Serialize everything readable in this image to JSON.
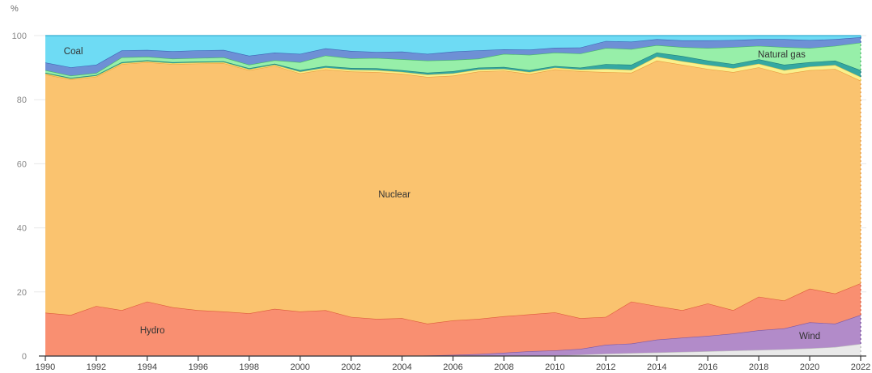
{
  "chart_data": {
    "type": "area",
    "stacked": true,
    "title": "",
    "unit": "%",
    "xlim": [
      1990,
      2022
    ],
    "ylim": [
      0,
      100
    ],
    "grid": "horizontal",
    "legend": "labels placed inside chart areas",
    "x": [
      1990,
      1991,
      1992,
      1993,
      1994,
      1995,
      1996,
      1997,
      1998,
      1999,
      2000,
      2001,
      2002,
      2003,
      2004,
      2005,
      2006,
      2007,
      2008,
      2009,
      2010,
      2011,
      2012,
      2013,
      2014,
      2015,
      2016,
      2017,
      2018,
      2019,
      2020,
      2021,
      2022
    ],
    "x_ticks": [
      1990,
      1992,
      1994,
      1996,
      1998,
      2000,
      2002,
      2004,
      2006,
      2008,
      2010,
      2012,
      2014,
      2016,
      2018,
      2020,
      2022
    ],
    "y_ticks": [
      0,
      20,
      40,
      60,
      80,
      100
    ],
    "series": [
      {
        "name": "unlabeled-gray-band",
        "label": null,
        "color": "#e9e9e9",
        "stroke": "#bdbdbd",
        "values": [
          0,
          0,
          0,
          0,
          0,
          0,
          0,
          0,
          0,
          0,
          0,
          0,
          0,
          0,
          0,
          0,
          0,
          0,
          0,
          0.1,
          0.15,
          0.4,
          0.7,
          0.9,
          1.1,
          1.3,
          1.5,
          1.7,
          1.9,
          2.1,
          2.4,
          2.8,
          3.8
        ]
      },
      {
        "name": "Wind",
        "label": "Wind",
        "label_pos": {
          "year": 2020.0,
          "pct": 6.3
        },
        "color": "#b28bc9",
        "stroke": "#7e58a4",
        "values": [
          0,
          0,
          0,
          0,
          0,
          0,
          0,
          0,
          0,
          0,
          0,
          0,
          0,
          0,
          0,
          0.15,
          0.35,
          0.6,
          1.0,
          1.4,
          1.6,
          1.8,
          2.8,
          3.0,
          4.0,
          4.4,
          4.8,
          5.3,
          6.1,
          6.5,
          8.1,
          7.3,
          9.0
        ]
      },
      {
        "name": "Hydro",
        "label": "Hydro",
        "label_pos": {
          "year": 1994.2,
          "pct": 8.1
        },
        "color": "#f98f71",
        "stroke": "#dd5a3a",
        "values": [
          13.5,
          12.8,
          15.6,
          14.3,
          17.0,
          15.2,
          14.3,
          13.9,
          13.3,
          14.7,
          13.9,
          14.3,
          12.2,
          11.6,
          11.8,
          9.95,
          10.75,
          11.0,
          11.4,
          11.5,
          11.85,
          9.6,
          8.7,
          13.1,
          10.5,
          8.6,
          10.1,
          7.3,
          10.5,
          8.7,
          10.5,
          9.4,
          9.9
        ]
      },
      {
        "name": "Nuclear",
        "label": "Nuclear",
        "label_pos": {
          "year": 2003.7,
          "pct": 50.5
        },
        "color": "#fac36f",
        "stroke": "#e99b3e",
        "values": [
          74.4,
          73.5,
          71.6,
          76.8,
          74.7,
          75.9,
          77.0,
          77.5,
          75.9,
          75.9,
          74.3,
          75.2,
          76.6,
          77.0,
          76.3,
          77.0,
          76.4,
          77.2,
          76.7,
          75.0,
          75.9,
          77.1,
          76.4,
          71.4,
          76.6,
          76.6,
          73.2,
          74.3,
          71.6,
          70.7,
          68.2,
          70.1,
          63.2
        ]
      },
      {
        "name": "unlabeled-yellow-band",
        "label": null,
        "color": "#f9f08c",
        "stroke": "#dfc94e",
        "values": [
          0.25,
          0.25,
          0.25,
          0.3,
          0.3,
          0.3,
          0.3,
          0.3,
          0.3,
          0.3,
          0.5,
          0.5,
          0.55,
          0.6,
          0.55,
          0.7,
          0.7,
          0.6,
          0.5,
          0.6,
          0.5,
          0.5,
          1.0,
          0.9,
          1.2,
          1.1,
          1.2,
          1.2,
          1.1,
          1.2,
          1.1,
          1.2,
          1.2
        ]
      },
      {
        "name": "unlabeled-teal-band",
        "label": null,
        "color": "#35a8a2",
        "stroke": "#1d7f7b",
        "values": [
          0.25,
          0.25,
          0.25,
          0.3,
          0.3,
          0.3,
          0.3,
          0.3,
          0.3,
          0.3,
          0.5,
          0.5,
          0.55,
          0.6,
          0.55,
          0.6,
          0.7,
          0.6,
          0.6,
          0.6,
          0.5,
          0.6,
          1.5,
          1.6,
          1.3,
          1.6,
          1.4,
          1.3,
          1.4,
          1.7,
          1.4,
          1.4,
          2.1
        ]
      },
      {
        "name": "Natural gas",
        "label": "Natural gas",
        "label_pos": {
          "year": 2018.9,
          "pct": 94.2
        },
        "color": "#97efa9",
        "stroke": "#46b865",
        "values": [
          0.8,
          0.7,
          0.6,
          1.5,
          1.1,
          1.1,
          1.1,
          1.2,
          1.1,
          1.1,
          2.5,
          3.3,
          3.0,
          3.2,
          3.4,
          3.8,
          3.5,
          2.8,
          4.1,
          4.8,
          4.2,
          4.4,
          5.0,
          4.9,
          2.3,
          2.8,
          3.9,
          5.3,
          4.2,
          5.5,
          4.4,
          4.6,
          8.6
        ]
      },
      {
        "name": "unlabeled-blue-band",
        "label": null,
        "color": "#6e90d5",
        "stroke": "#3c64b4",
        "values": [
          2.4,
          2.6,
          2.6,
          2.2,
          2.1,
          2.3,
          2.4,
          2.3,
          2.8,
          2.4,
          2.6,
          2.2,
          2.3,
          1.9,
          2.4,
          2.1,
          2.6,
          2.6,
          1.4,
          1.6,
          1.5,
          1.9,
          2.2,
          2.3,
          1.9,
          2.1,
          2.4,
          2.2,
          2.1,
          2.5,
          2.5,
          2.1,
          1.7
        ]
      },
      {
        "name": "Coal",
        "label": "Coal",
        "label_pos": {
          "year": 1991.1,
          "pct": 95.2
        },
        "color": "#6edbf4",
        "stroke": "#35aed2",
        "values": [
          8.4,
          9.9,
          9.1,
          4.6,
          4.5,
          4.9,
          4.6,
          4.5,
          6.3,
          5.3,
          5.7,
          4.0,
          4.8,
          5.1,
          5.0,
          5.7,
          5.0,
          4.6,
          4.3,
          4.4,
          3.8,
          3.7,
          1.7,
          1.9,
          1.1,
          1.5,
          1.5,
          1.4,
          1.1,
          1.1,
          1.4,
          1.1,
          0.5
        ]
      }
    ],
    "style": {
      "gridline_color": "#e8e8e8",
      "axis_color": "#3a3a3a",
      "right_edge_dashed": true
    }
  }
}
